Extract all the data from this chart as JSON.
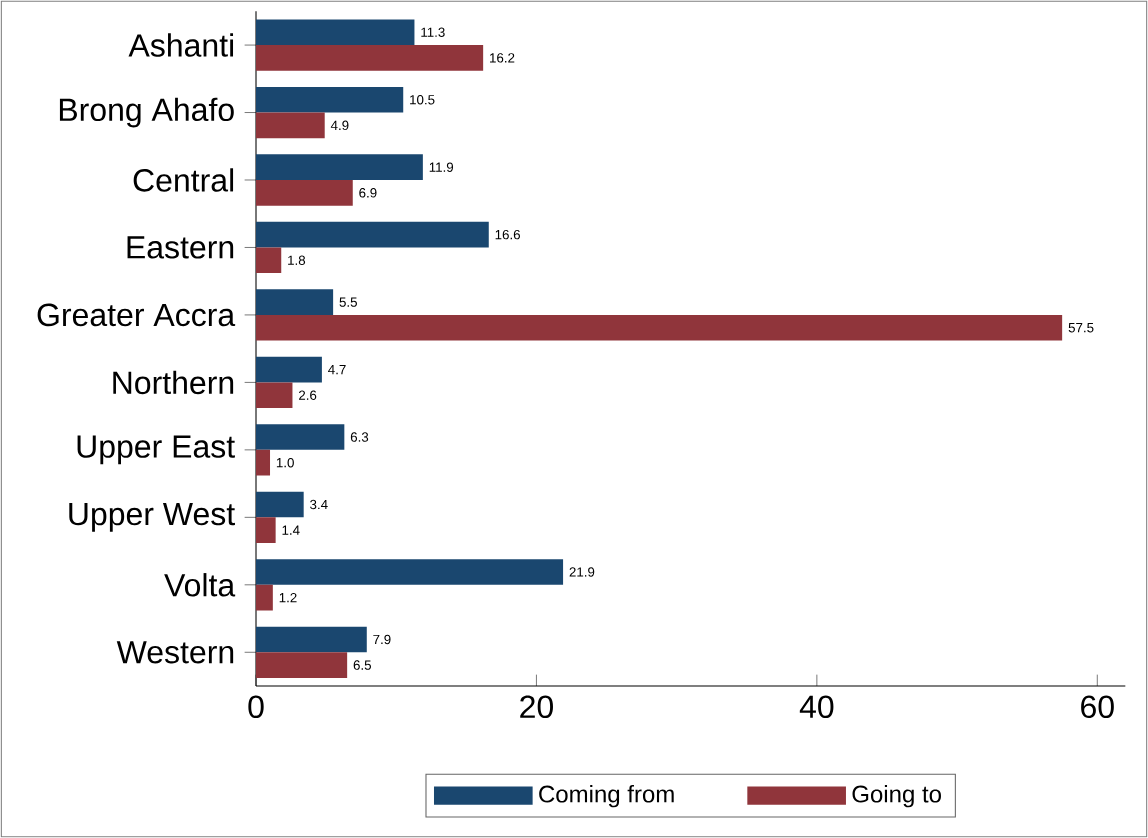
{
  "chart_data": {
    "type": "bar",
    "orientation": "horizontal",
    "categories": [
      "Ashanti",
      "Brong Ahafo",
      "Central",
      "Eastern",
      "Greater Accra",
      "Northern",
      "Upper East",
      "Upper West",
      "Volta",
      "Western"
    ],
    "series": [
      {
        "name": "Coming from",
        "color": "#1a476f",
        "values": [
          11.3,
          10.5,
          11.9,
          16.6,
          5.5,
          4.7,
          6.3,
          3.4,
          21.9,
          7.9
        ],
        "value_labels": [
          "11.3",
          "10.5",
          "11.9",
          "16.6",
          "5.5",
          "4.7",
          "6.3",
          "3.4",
          "21.9",
          "7.9"
        ]
      },
      {
        "name": "Going to",
        "color": "#90353b",
        "values": [
          16.2,
          4.9,
          6.9,
          1.8,
          57.5,
          2.6,
          1.0,
          1.4,
          1.2,
          6.5
        ],
        "value_labels": [
          "16.2",
          "4.9",
          "6.9",
          "1.8",
          "57.5",
          "2.6",
          "1.0",
          "1.4",
          "1.2",
          "6.5"
        ]
      }
    ],
    "xlim": [
      0,
      62
    ],
    "xticks": [
      0,
      20,
      40,
      60
    ],
    "grid": false,
    "legend": "bottom"
  }
}
